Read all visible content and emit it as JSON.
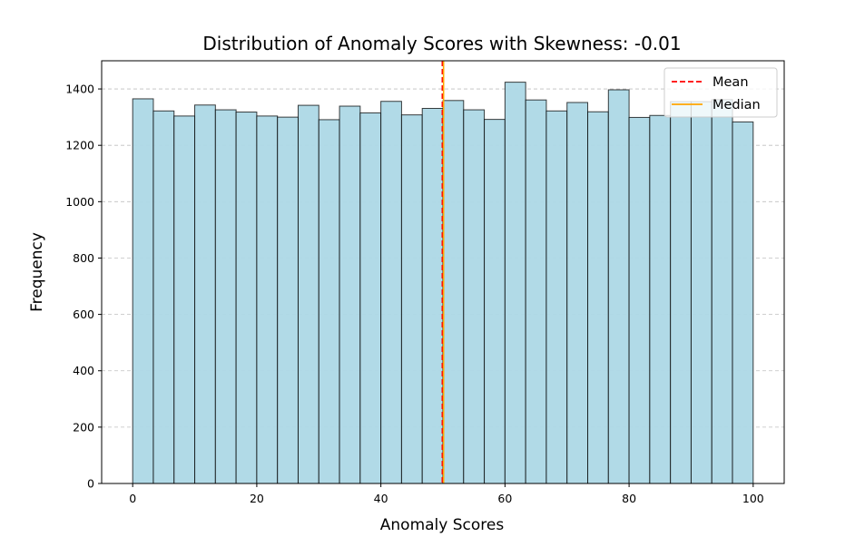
{
  "chart_data": {
    "type": "bar",
    "title": "Distribution of Anomaly Scores with Skewness: -0.01",
    "xlabel": "Anomaly Scores",
    "ylabel": "Frequency",
    "xlim": [
      -5,
      105
    ],
    "ylim": [
      0,
      1500
    ],
    "xticks": [
      0,
      20,
      40,
      60,
      80,
      100
    ],
    "yticks": [
      0,
      200,
      400,
      600,
      800,
      1000,
      1200,
      1400
    ],
    "grid": "horizontal dashed",
    "bin_edges": [
      0,
      3.3333,
      6.6667,
      10,
      13.3333,
      16.6667,
      20,
      23.3333,
      26.6667,
      30,
      33.3333,
      36.6667,
      40,
      43.3333,
      46.6667,
      50,
      53.3333,
      56.6667,
      60,
      63.3333,
      66.6667,
      70,
      73.3333,
      76.6667,
      80,
      83.3333,
      86.6667,
      90,
      93.3333,
      96.6667,
      100
    ],
    "values": [
      1365,
      1322,
      1304,
      1343,
      1326,
      1318,
      1304,
      1300,
      1342,
      1291,
      1339,
      1315,
      1356,
      1308,
      1331,
      1359,
      1326,
      1292,
      1424,
      1361,
      1322,
      1352,
      1319,
      1397,
      1299,
      1306,
      1355,
      1355,
      1362,
      1283
    ],
    "bar_color": "#add8e6",
    "edge_color": "#000000",
    "lines": [
      {
        "name": "Mean",
        "x": 49.9,
        "color": "#ff0000",
        "style": "dashed"
      },
      {
        "name": "Median",
        "x": 50.1,
        "color": "#ffa500",
        "style": "solid"
      }
    ],
    "legend": {
      "placement": "top-right",
      "entries": [
        {
          "label": "Mean",
          "color": "#ff0000",
          "style": "dashed"
        },
        {
          "label": "Median",
          "color": "#ffa500",
          "style": "solid"
        }
      ]
    }
  }
}
